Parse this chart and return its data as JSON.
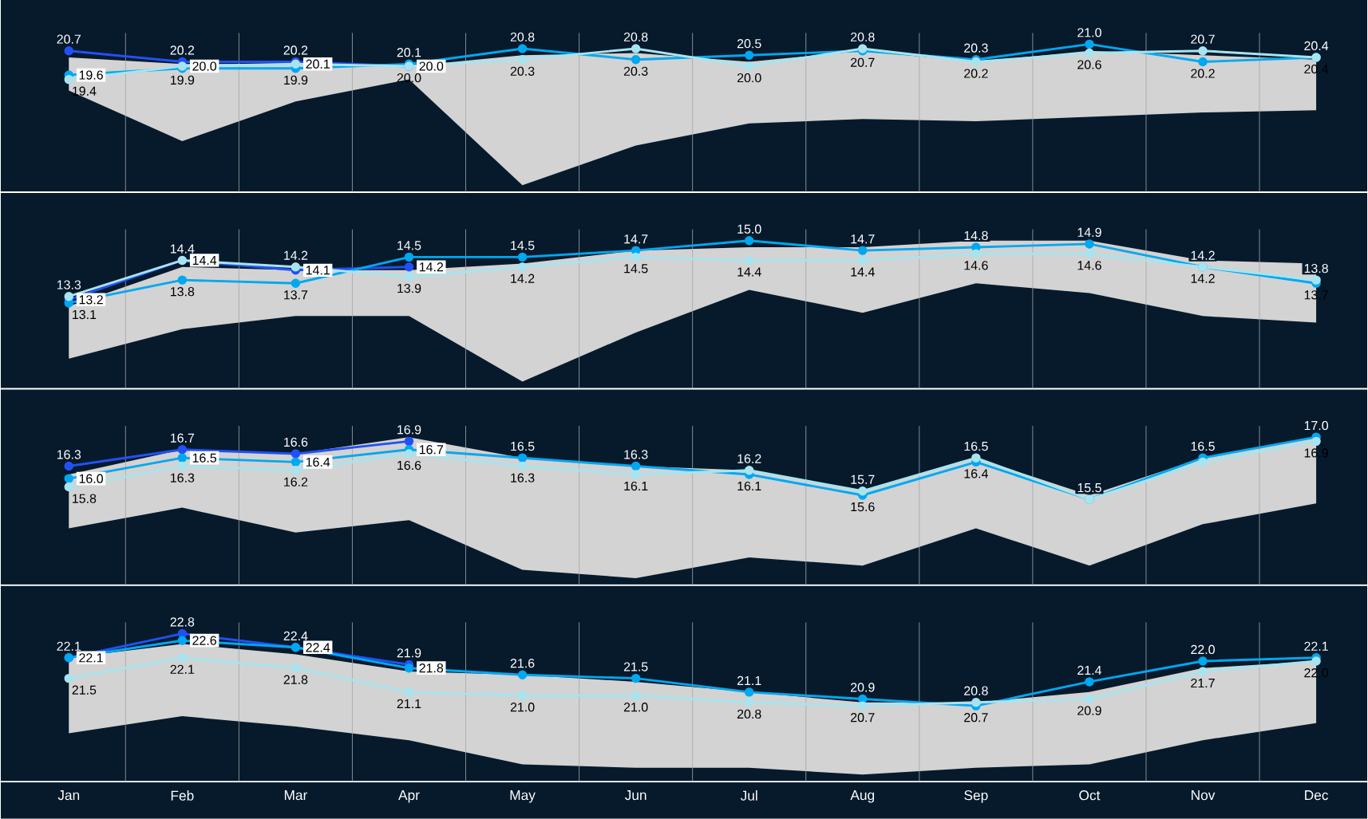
{
  "chart_data": [
    {
      "type": "line",
      "categories": [
        null,
        null,
        null,
        null,
        null,
        null,
        null,
        null,
        null,
        null,
        null,
        null
      ],
      "tick_labels": false,
      "grid": "x",
      "marker": "circle",
      "series": [
        {
          "color": "#2151f5",
          "values": [
            20.7,
            20.2,
            20.2,
            20.0,
            null,
            null,
            null,
            null,
            null,
            null,
            null,
            null
          ],
          "value_labels": [
            "20.7",
            "20.2",
            "20.2",
            "20.0",
            null,
            null,
            null,
            null,
            null,
            null,
            null,
            null
          ]
        },
        {
          "color": "#00a8f0",
          "values": [
            19.6,
            19.9,
            19.9,
            20.1,
            20.8,
            20.3,
            20.5,
            20.7,
            20.3,
            21.0,
            20.2,
            20.4
          ],
          "value_labels": [
            "19.6",
            "19.9",
            "19.9",
            "20.1",
            "20.8",
            "20.3",
            "20.5",
            "20.7",
            "20.3",
            "21.0",
            "20.2",
            "20.4"
          ],
          "lower": [
            18.9,
            16.6,
            18.4,
            19.4,
            14.6,
            16.4,
            17.4,
            17.6,
            17.5,
            17.7,
            17.9,
            18.0
          ],
          "upper": [
            20.4,
            20.1,
            20.1,
            20.0,
            20.5,
            20.6,
            20.2,
            20.7,
            20.2,
            20.7,
            20.5,
            20.3
          ]
        },
        {
          "color": "#a8e4ef",
          "values": [
            19.4,
            20.0,
            20.1,
            20.0,
            20.3,
            20.8,
            20.0,
            20.8,
            20.2,
            20.6,
            20.7,
            20.4
          ],
          "value_labels": [
            "19.4",
            "20.0",
            "20.1",
            "20.0",
            "20.3",
            "20.8",
            "20.0",
            "20.8",
            "20.2",
            "20.6",
            "20.7",
            "20.4"
          ]
        }
      ]
    },
    {
      "type": "line",
      "categories": [
        null,
        null,
        null,
        null,
        null,
        null,
        null,
        null,
        null,
        null,
        null,
        null
      ],
      "tick_labels": false,
      "grid": "x",
      "marker": "circle",
      "series": [
        {
          "color": "#2151f5",
          "values": [
            13.2,
            14.4,
            14.1,
            14.2,
            null,
            null,
            null,
            null,
            null,
            null,
            null,
            null
          ],
          "value_labels": [
            "13.2",
            "14.4",
            "14.1",
            "14.2",
            null,
            null,
            null,
            null,
            null,
            null,
            null,
            null
          ]
        },
        {
          "color": "#00a8f0",
          "values": [
            13.1,
            13.8,
            13.7,
            14.5,
            14.5,
            14.7,
            15.0,
            14.7,
            14.8,
            14.9,
            14.2,
            13.7
          ],
          "value_labels": [
            "13.1",
            "13.8",
            "13.7",
            "14.5",
            "14.5",
            "14.7",
            "15.0",
            "14.7",
            "14.8",
            "14.9",
            "14.2",
            "13.7"
          ],
          "lower": [
            11.4,
            12.3,
            12.7,
            12.7,
            10.7,
            12.2,
            13.5,
            12.8,
            13.7,
            13.4,
            12.7,
            12.5
          ],
          "upper": [
            13.0,
            14.2,
            14.1,
            14.1,
            14.3,
            14.7,
            14.8,
            14.8,
            15.0,
            15.0,
            14.4,
            14.3
          ]
        },
        {
          "color": "#a8e4ef",
          "values": [
            13.3,
            14.4,
            14.2,
            13.9,
            14.2,
            14.5,
            14.4,
            14.4,
            14.6,
            14.6,
            14.2,
            13.8
          ],
          "value_labels": [
            "13.3",
            "14.4",
            "14.2",
            "13.9",
            "14.2",
            "14.5",
            "14.4",
            "14.4",
            "14.6",
            "14.6",
            "14.2",
            "13.8"
          ]
        }
      ]
    },
    {
      "type": "line",
      "categories": [
        null,
        null,
        null,
        null,
        null,
        null,
        null,
        null,
        null,
        null,
        null,
        null
      ],
      "tick_labels": false,
      "grid": "x",
      "marker": "circle",
      "series": [
        {
          "color": "#2151f5",
          "values": [
            16.3,
            16.7,
            16.6,
            16.9,
            null,
            null,
            null,
            null,
            null,
            null,
            null,
            null
          ],
          "value_labels": [
            "16.3",
            "16.7",
            "16.6",
            "16.9",
            null,
            null,
            null,
            null,
            null,
            null,
            null,
            null
          ]
        },
        {
          "color": "#00a8f0",
          "values": [
            16.0,
            16.5,
            16.4,
            16.7,
            16.5,
            16.3,
            16.1,
            15.6,
            16.4,
            15.5,
            16.5,
            17.0
          ],
          "value_labels": [
            "16.0",
            "16.5",
            "16.4",
            "16.7",
            "16.5",
            "16.3",
            "16.1",
            "15.6",
            "16.4",
            "15.5",
            "16.5",
            "17.0"
          ],
          "lower": [
            14.8,
            15.3,
            14.7,
            15.0,
            13.8,
            13.6,
            14.1,
            13.9,
            14.8,
            13.9,
            14.9,
            15.4
          ],
          "upper": [
            16.1,
            16.7,
            16.6,
            17.0,
            16.5,
            16.3,
            16.2,
            15.7,
            16.5,
            15.6,
            16.5,
            17.0
          ]
        },
        {
          "color": "#a8e4ef",
          "values": [
            15.8,
            16.3,
            16.2,
            16.6,
            16.3,
            16.1,
            16.2,
            15.7,
            16.5,
            15.5,
            16.4,
            16.9
          ],
          "value_labels": [
            "15.8",
            "16.3",
            "16.2",
            "16.6",
            "16.3",
            "16.1",
            "16.2",
            "15.7",
            "16.5",
            null,
            null,
            "16.9"
          ]
        }
      ]
    },
    {
      "type": "line",
      "categories": [
        "Jan",
        "Feb",
        "Mar",
        "Apr",
        "May",
        "Jun",
        "Jul",
        "Aug",
        "Sep",
        "Oct",
        "Nov",
        "Dec"
      ],
      "tick_labels": "x",
      "grid": "x",
      "marker": "circle",
      "series": [
        {
          "color": "#2151f5",
          "values": [
            22.1,
            22.8,
            22.4,
            21.9,
            null,
            null,
            null,
            null,
            null,
            null,
            null,
            null
          ],
          "value_labels": [
            "22.1",
            "22.8",
            "22.4",
            "21.9",
            null,
            null,
            null,
            null,
            null,
            null,
            null,
            null
          ]
        },
        {
          "color": "#00a8f0",
          "values": [
            22.1,
            22.6,
            22.4,
            21.8,
            21.6,
            21.5,
            21.1,
            20.9,
            20.7,
            21.4,
            22.0,
            22.1
          ],
          "value_labels": [
            "22.1",
            "22.6",
            "22.4",
            "21.8",
            "21.6",
            "21.5",
            "21.1",
            "20.9",
            "20.7",
            "21.4",
            "22.0",
            "22.1"
          ],
          "lower": [
            19.9,
            20.4,
            20.1,
            19.7,
            19.0,
            18.9,
            18.9,
            18.7,
            18.9,
            19.0,
            19.7,
            20.2
          ],
          "upper": [
            22.1,
            22.5,
            22.2,
            21.7,
            21.6,
            21.4,
            21.1,
            20.8,
            20.8,
            21.1,
            21.8,
            22.0
          ]
        },
        {
          "color": "#a8e4ef",
          "values": [
            21.5,
            22.1,
            21.8,
            21.1,
            21.0,
            21.0,
            20.8,
            20.7,
            20.8,
            20.9,
            21.7,
            22.0
          ],
          "value_labels": [
            "21.5",
            "22.1",
            "21.8",
            "21.1",
            "21.0",
            "21.0",
            "20.8",
            "20.7",
            "20.8",
            "20.9",
            "21.7",
            "22.0"
          ]
        }
      ]
    }
  ]
}
